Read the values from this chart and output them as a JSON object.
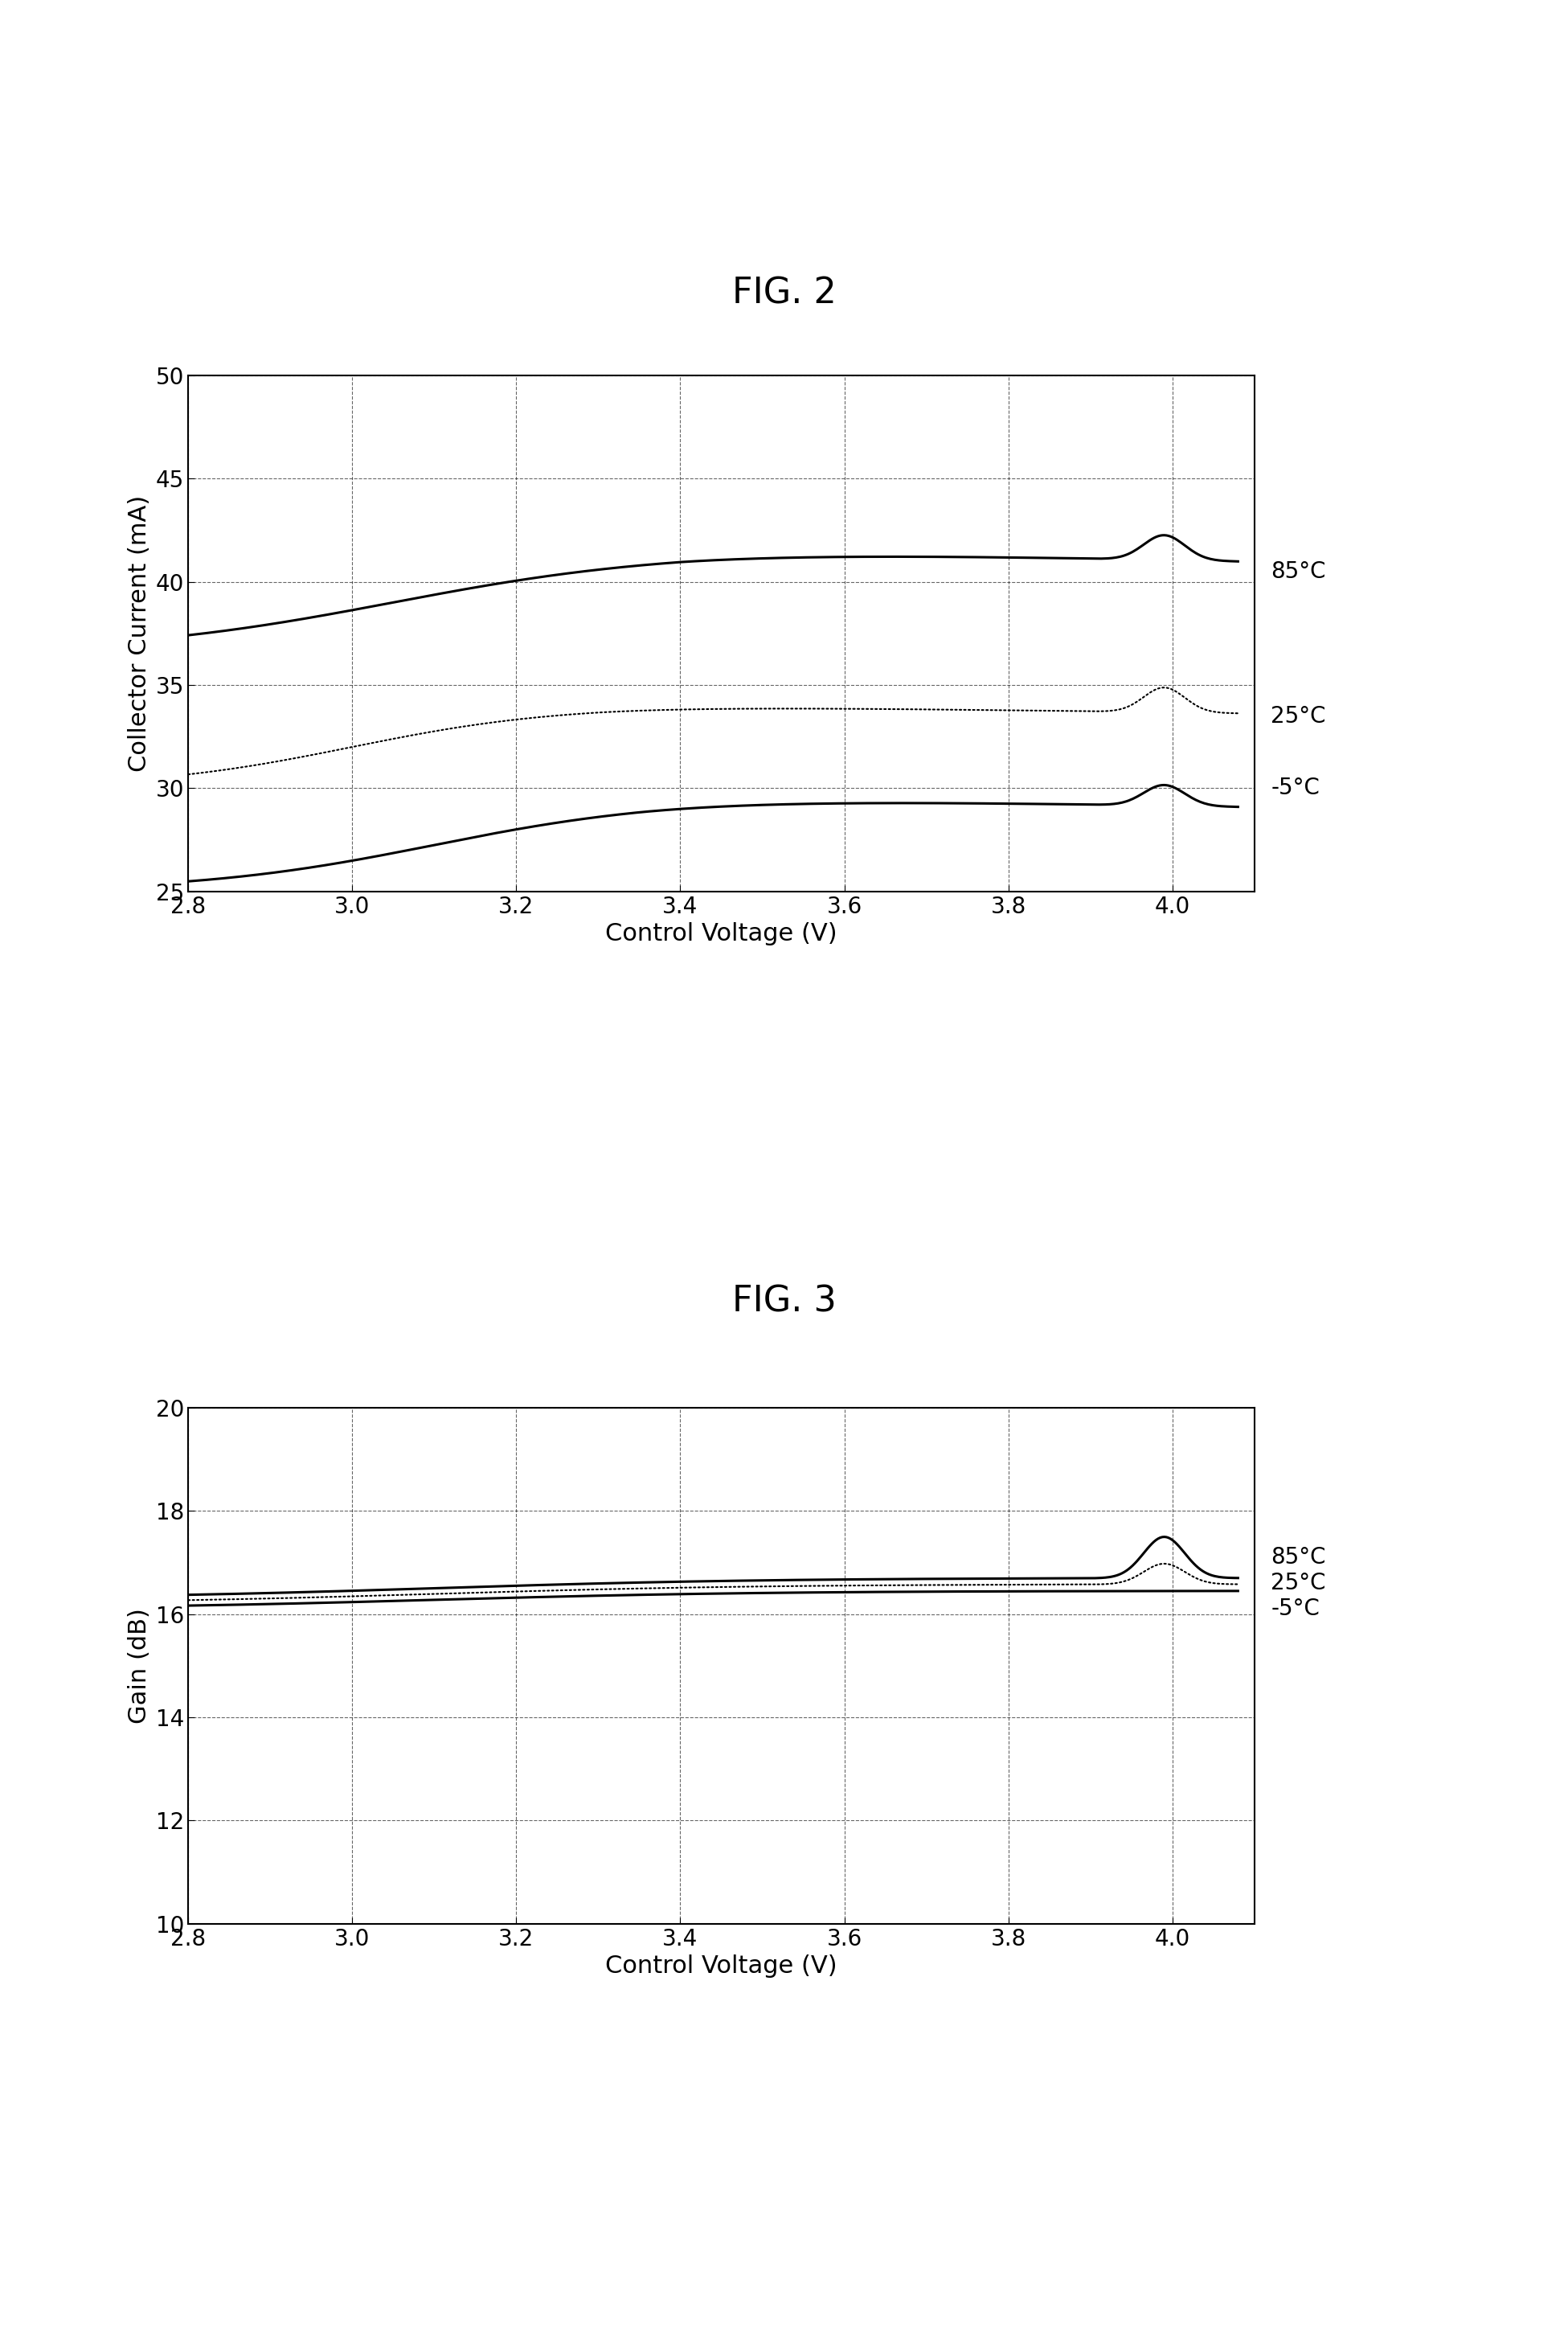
{
  "fig2_title": "FIG. 2",
  "fig3_title": "FIG. 3",
  "xlabel": "Control Voltage (V)",
  "fig2_ylabel": "Collector Current (mA)",
  "fig3_ylabel": "Gain (dB)",
  "fig2_xlim": [
    2.8,
    4.1
  ],
  "fig2_ylim": [
    25,
    50
  ],
  "fig3_xlim": [
    2.8,
    4.1
  ],
  "fig3_ylim": [
    10,
    20
  ],
  "fig2_xticks": [
    2.8,
    3.0,
    3.2,
    3.4,
    3.6,
    3.8,
    4.0
  ],
  "fig2_yticks": [
    25,
    30,
    35,
    40,
    45,
    50
  ],
  "fig3_xticks": [
    2.8,
    3.0,
    3.2,
    3.4,
    3.6,
    3.8,
    4.0
  ],
  "fig3_yticks": [
    10,
    12,
    14,
    16,
    18,
    20
  ],
  "temp_labels": [
    "85°C",
    "25°C",
    "-5°C"
  ],
  "background_color": "#ffffff",
  "line_color": "#000000",
  "title_fontsize": 32,
  "axis_label_fontsize": 22,
  "tick_fontsize": 20,
  "annotation_fontsize": 20
}
